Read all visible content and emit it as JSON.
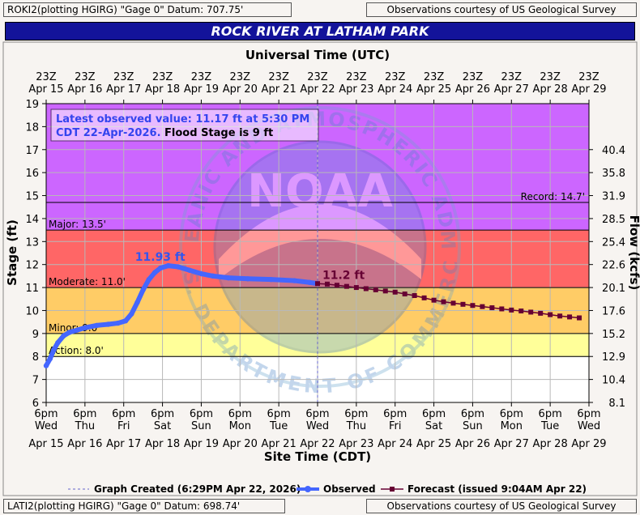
{
  "header": {
    "top_left": "ROKI2(plotting HGIRG) \"Gage 0\" Datum: 707.75'",
    "top_right": "Observations courtesy of US Geological Survey",
    "bottom_left": "LATI2(plotting HGIRG) \"Gage 0\" Datum: 698.74'",
    "bottom_right": "Observations courtesy of US Geological Survey"
  },
  "chart_data": {
    "type": "line",
    "title": "ROCK RIVER AT LATHAM PARK",
    "top_axis_title": "Universal Time (UTC)",
    "xlabel": "Site Time (CDT)",
    "ylabel": "Stage (ft)",
    "y2label": "Flow (kcfs)",
    "ylim": [
      6,
      19
    ],
    "y_ticks": [
      "6",
      "7",
      "8",
      "9",
      "10",
      "11",
      "12",
      "13",
      "14",
      "15",
      "16",
      "17",
      "18",
      "19"
    ],
    "y2_ticks": [
      {
        "stage": 6.0,
        "label": "8.1"
      },
      {
        "stage": 7.0,
        "label": "10.4"
      },
      {
        "stage": 8.0,
        "label": "12.9"
      },
      {
        "stage": 9.0,
        "label": "15.2"
      },
      {
        "stage": 10.0,
        "label": "17.6"
      },
      {
        "stage": 11.0,
        "label": "20.1"
      },
      {
        "stage": 12.0,
        "label": "22.6"
      },
      {
        "stage": 13.0,
        "label": "25.4"
      },
      {
        "stage": 14.0,
        "label": "28.5"
      },
      {
        "stage": 15.0,
        "label": "31.9"
      },
      {
        "stage": 16.0,
        "label": "35.8"
      },
      {
        "stage": 17.0,
        "label": "40.4"
      }
    ],
    "x_ticks_bottom": [
      {
        "line1": "6pm",
        "line2": "Wed",
        "date": "Apr 15"
      },
      {
        "line1": "6pm",
        "line2": "Thu",
        "date": "Apr 16"
      },
      {
        "line1": "6pm",
        "line2": "Fri",
        "date": "Apr 17"
      },
      {
        "line1": "6pm",
        "line2": "Sat",
        "date": "Apr 18"
      },
      {
        "line1": "6pm",
        "line2": "Sun",
        "date": "Apr 19"
      },
      {
        "line1": "6pm",
        "line2": "Mon",
        "date": "Apr 20"
      },
      {
        "line1": "6pm",
        "line2": "Tue",
        "date": "Apr 21"
      },
      {
        "line1": "6pm",
        "line2": "Wed",
        "date": "Apr 22"
      },
      {
        "line1": "6pm",
        "line2": "Thu",
        "date": "Apr 23"
      },
      {
        "line1": "6pm",
        "line2": "Fri",
        "date": "Apr 24"
      },
      {
        "line1": "6pm",
        "line2": "Sat",
        "date": "Apr 25"
      },
      {
        "line1": "6pm",
        "line2": "Sun",
        "date": "Apr 26"
      },
      {
        "line1": "6pm",
        "line2": "Mon",
        "date": "Apr 27"
      },
      {
        "line1": "6pm",
        "line2": "Tue",
        "date": "Apr 28"
      },
      {
        "line1": "6pm",
        "line2": "Wed",
        "date": "Apr 29"
      }
    ],
    "x_ticks_top": [
      {
        "line1": "23Z",
        "date": "Apr 15"
      },
      {
        "line1": "23Z",
        "date": "Apr 16"
      },
      {
        "line1": "23Z",
        "date": "Apr 17"
      },
      {
        "line1": "23Z",
        "date": "Apr 18"
      },
      {
        "line1": "23Z",
        "date": "Apr 19"
      },
      {
        "line1": "23Z",
        "date": "Apr 20"
      },
      {
        "line1": "23Z",
        "date": "Apr 21"
      },
      {
        "line1": "23Z",
        "date": "Apr 22"
      },
      {
        "line1": "23Z",
        "date": "Apr 23"
      },
      {
        "line1": "23Z",
        "date": "Apr 24"
      },
      {
        "line1": "23Z",
        "date": "Apr 25"
      },
      {
        "line1": "23Z",
        "date": "Apr 26"
      },
      {
        "line1": "23Z",
        "date": "Apr 27"
      },
      {
        "line1": "23Z",
        "date": "Apr 28"
      },
      {
        "line1": "23Z",
        "date": "Apr 29"
      }
    ],
    "zones": [
      {
        "from": 6,
        "to": 8,
        "color": "#ffffff"
      },
      {
        "from": 8,
        "to": 9,
        "color": "#ffff99"
      },
      {
        "from": 9,
        "to": 11,
        "color": "#ffcc66"
      },
      {
        "from": 11,
        "to": 13.5,
        "color": "#ff6666"
      },
      {
        "from": 13.5,
        "to": 19,
        "color": "#cc66ff"
      }
    ],
    "thresholds": [
      {
        "value": 8.0,
        "label": "Action: 8.0'",
        "align": "left"
      },
      {
        "value": 9.0,
        "label": "Minor: 9.0'",
        "align": "left"
      },
      {
        "value": 11.0,
        "label": "Moderate: 11.0'",
        "align": "left"
      },
      {
        "value": 13.5,
        "label": "Major: 13.5'",
        "align": "left"
      },
      {
        "value": 14.7,
        "label": "Record: 14.7'",
        "align": "right"
      }
    ],
    "observed": {
      "name": "Observed",
      "color": "#4466ff",
      "points": [
        [
          0.0,
          7.6
        ],
        [
          0.1,
          7.9
        ],
        [
          0.2,
          8.3
        ],
        [
          0.3,
          8.6
        ],
        [
          0.45,
          8.9
        ],
        [
          0.6,
          9.05
        ],
        [
          0.8,
          9.15
        ],
        [
          1.0,
          9.25
        ],
        [
          1.3,
          9.35
        ],
        [
          1.6,
          9.4
        ],
        [
          1.85,
          9.45
        ],
        [
          2.05,
          9.55
        ],
        [
          2.2,
          9.85
        ],
        [
          2.35,
          10.35
        ],
        [
          2.5,
          10.9
        ],
        [
          2.65,
          11.35
        ],
        [
          2.8,
          11.65
        ],
        [
          2.95,
          11.85
        ],
        [
          3.15,
          11.95
        ],
        [
          3.4,
          11.9
        ],
        [
          3.7,
          11.75
        ],
        [
          4.0,
          11.6
        ],
        [
          4.3,
          11.5
        ],
        [
          4.7,
          11.42
        ],
        [
          5.2,
          11.38
        ],
        [
          5.8,
          11.35
        ],
        [
          6.4,
          11.3
        ],
        [
          6.8,
          11.22
        ],
        [
          7.0,
          11.17
        ]
      ]
    },
    "forecast": {
      "name": "Forecast (issued 9:04AM Apr 22)",
      "color": "#660033",
      "points": [
        [
          7.0,
          11.17
        ],
        [
          7.25,
          11.15
        ],
        [
          7.5,
          11.1
        ],
        [
          7.75,
          11.05
        ],
        [
          8.0,
          11.0
        ],
        [
          8.25,
          10.95
        ],
        [
          8.5,
          10.9
        ],
        [
          8.75,
          10.85
        ],
        [
          9.0,
          10.8
        ],
        [
          9.25,
          10.72
        ],
        [
          9.5,
          10.65
        ],
        [
          9.75,
          10.55
        ],
        [
          10.0,
          10.45
        ],
        [
          10.25,
          10.38
        ],
        [
          10.5,
          10.32
        ],
        [
          10.75,
          10.27
        ],
        [
          11.0,
          10.22
        ],
        [
          11.25,
          10.17
        ],
        [
          11.5,
          10.12
        ],
        [
          11.75,
          10.07
        ],
        [
          12.0,
          10.02
        ],
        [
          12.25,
          9.98
        ],
        [
          12.5,
          9.93
        ],
        [
          12.75,
          9.88
        ],
        [
          13.0,
          9.82
        ],
        [
          13.25,
          9.76
        ],
        [
          13.5,
          9.72
        ],
        [
          13.75,
          9.68
        ]
      ]
    },
    "annotations": {
      "crest_label": "11.93 ft",
      "crest_x": 3.15,
      "crest_y": 11.95,
      "fc_label": "11.2 ft",
      "fc_x": 7.0,
      "fc_y": 11.17
    },
    "created_line_x": 7.0,
    "infobox": {
      "line1": "Latest observed value: 11.17 ft at 5:30 PM",
      "line2a": "CDT 22-Apr-2026.",
      "line2b": " Flood Stage is 9 ft"
    },
    "watermark": {
      "center": "NOAA",
      "ring_top": "NATIONAL OCEANIC AND ATMOSPHERIC ADMINISTRATION",
      "ring_bottom": "U.S. DEPARTMENT OF COMMERCE"
    },
    "legend": [
      {
        "key": "created",
        "label": "Graph Created (6:29PM Apr 22, 2026)",
        "color": "#6666cc"
      },
      {
        "key": "observed",
        "label": "Observed",
        "color": "#4466ff"
      },
      {
        "key": "forecast",
        "label": "Forecast (issued 9:04AM Apr 22)",
        "color": "#660033"
      }
    ],
    "legend_position": "bottom",
    "grid": true
  }
}
